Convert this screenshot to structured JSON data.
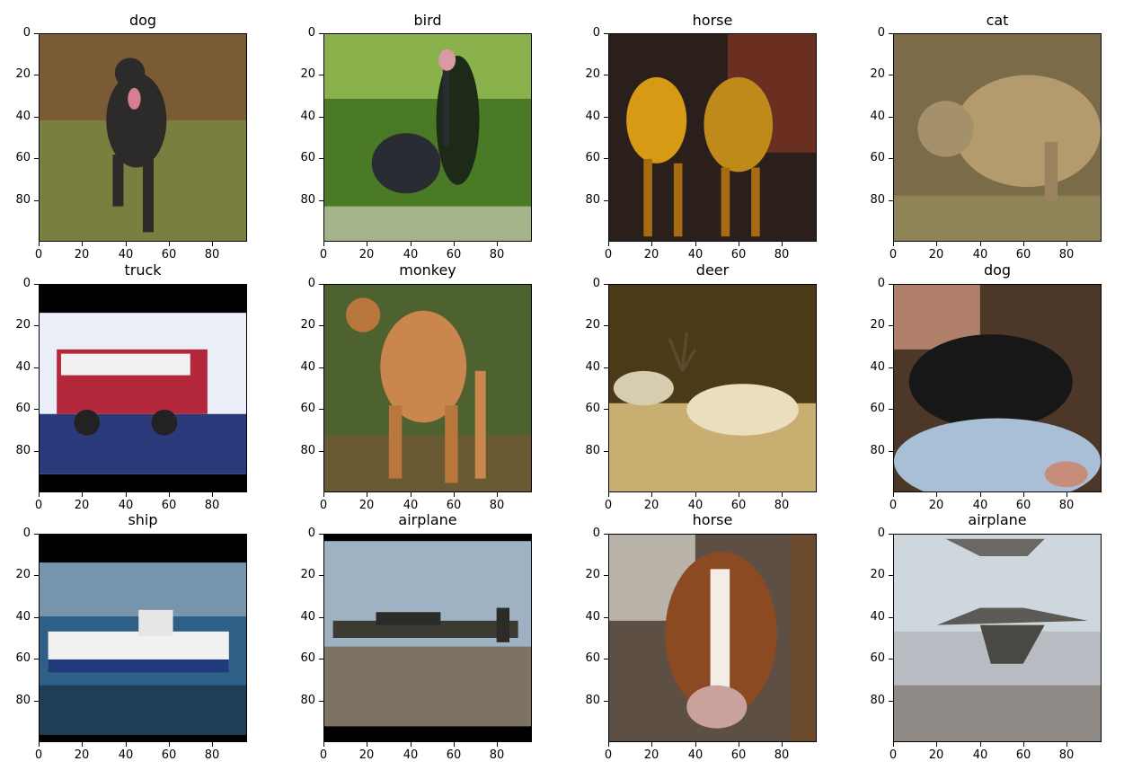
{
  "figure": {
    "yticks": [
      "0",
      "20",
      "40",
      "60",
      "80"
    ],
    "xticks": [
      "0",
      "20",
      "40",
      "60",
      "80"
    ],
    "panels": [
      {
        "title": "dog",
        "subject": "dog-photo",
        "bg": "#6f6f3a",
        "accent": "#2d2b29"
      },
      {
        "title": "bird",
        "subject": "bird-photo",
        "bg": "#4e7a2e",
        "accent": "#2a2c34"
      },
      {
        "title": "horse",
        "subject": "horse-photo",
        "bg": "#2a1a10",
        "accent": "#d79a14"
      },
      {
        "title": "cat",
        "subject": "cat-photo",
        "bg": "#8c7a52",
        "accent": "#b39b6e"
      },
      {
        "title": "truck",
        "subject": "truck-photo",
        "bg": "#ffffff",
        "accent": "#b3283a"
      },
      {
        "title": "monkey",
        "subject": "monkey-photo",
        "bg": "#5a6a2a",
        "accent": "#c9864d"
      },
      {
        "title": "deer",
        "subject": "deer-photo",
        "bg": "#6a5522",
        "accent": "#e9dfbe"
      },
      {
        "title": "dog",
        "subject": "dog-photo",
        "bg": "#5b4331",
        "accent": "#171717"
      },
      {
        "title": "ship",
        "subject": "ship-photo",
        "bg": "#2b4f71",
        "accent": "#f1f1f1"
      },
      {
        "title": "airplane",
        "subject": "airplane-photo",
        "bg": "#9fb2c3",
        "accent": "#3b3b34"
      },
      {
        "title": "horse",
        "subject": "horse-photo",
        "bg": "#5c4b3c",
        "accent": "#8b4a22"
      },
      {
        "title": "airplane",
        "subject": "airplane-photo",
        "bg": "#cfd7de",
        "accent": "#5c5a55"
      }
    ]
  }
}
